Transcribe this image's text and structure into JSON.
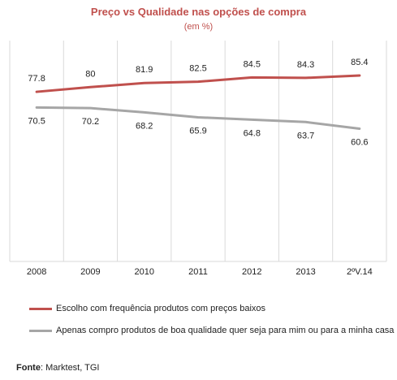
{
  "chart_data": {
    "type": "line",
    "title": "Preço vs Qualidade nas opções de compra",
    "subtitle": "(em %)",
    "categories": [
      "2008",
      "2009",
      "2010",
      "2011",
      "2012",
      "2013",
      "2ºV.14"
    ],
    "series": [
      {
        "name": "Escolho com frequência produtos com preços baixos",
        "values": [
          77.8,
          80,
          81.9,
          82.5,
          84.5,
          84.3,
          85.4
        ],
        "labels": [
          "77.8",
          "80",
          "81.9",
          "82.5",
          "84.5",
          "84.3",
          "85.4"
        ],
        "color": "#c0504d"
      },
      {
        "name": "Apenas compro produtos de boa qualidade quer seja para mim ou para a minha casa",
        "values": [
          70.5,
          70.2,
          68.2,
          65.9,
          64.8,
          63.7,
          60.6
        ],
        "labels": [
          "70.5",
          "70.2",
          "68.2",
          "65.9",
          "64.8",
          "63.7",
          "60.6"
        ],
        "color": "#a6a6a6"
      }
    ],
    "grid": "vertical",
    "legend_position": "bottom"
  },
  "source": {
    "label": "Fonte",
    "text": ": Marktest, TGI"
  }
}
